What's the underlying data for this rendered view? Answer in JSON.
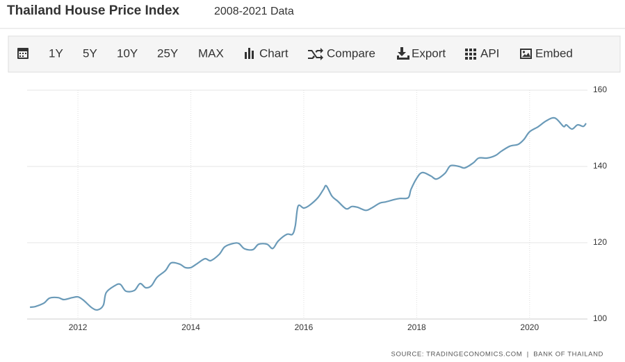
{
  "header": {
    "title": "Thailand House Price Index",
    "subtitle": "2008-2021 Data"
  },
  "toolbar": [
    "1Y",
    "5Y",
    "10Y",
    "25Y",
    "MAX",
    "Chart",
    "Compare",
    "Export",
    "API",
    "Embed"
  ],
  "chart_data": {
    "type": "line",
    "x": [
      2011.15,
      2011.25,
      2011.4,
      2011.5,
      2011.65,
      2011.75,
      2011.9,
      2012.0,
      2012.1,
      2012.25,
      2012.35,
      2012.45,
      2012.5,
      2012.65,
      2012.75,
      2012.85,
      2013.0,
      2013.1,
      2013.2,
      2013.3,
      2013.4,
      2013.55,
      2013.65,
      2013.8,
      2013.9,
      2014.0,
      2014.1,
      2014.25,
      2014.35,
      2014.5,
      2014.6,
      2014.75,
      2014.85,
      2014.95,
      2015.1,
      2015.2,
      2015.35,
      2015.45,
      2015.55,
      2015.7,
      2015.8,
      2015.85,
      2015.9,
      2016.0,
      2016.1,
      2016.25,
      2016.35,
      2016.4,
      2016.5,
      2016.6,
      2016.75,
      2016.85,
      2016.95,
      2017.1,
      2017.2,
      2017.35,
      2017.45,
      2017.6,
      2017.7,
      2017.85,
      2017.9,
      2018.0,
      2018.1,
      2018.25,
      2018.35,
      2018.5,
      2018.6,
      2018.75,
      2018.85,
      2019.0,
      2019.1,
      2019.25,
      2019.4,
      2019.5,
      2019.65,
      2019.8,
      2019.9,
      2020.0,
      2020.15,
      2020.3,
      2020.45,
      2020.6,
      2020.65,
      2020.75,
      2020.85,
      2020.95,
      2021.0
    ],
    "series": [
      {
        "name": "Thailand House Price Index",
        "color": "#6a9ab8",
        "values": [
          103.1,
          103.3,
          104.2,
          105.5,
          105.6,
          105.1,
          105.6,
          105.8,
          104.9,
          102.9,
          102.4,
          103.6,
          106.9,
          108.7,
          109.1,
          107.3,
          107.5,
          109.3,
          108.2,
          108.7,
          110.9,
          112.7,
          114.7,
          114.4,
          113.5,
          113.5,
          114.4,
          115.8,
          115.3,
          116.9,
          118.9,
          119.8,
          119.8,
          118.4,
          118.2,
          119.6,
          119.6,
          118.5,
          120.5,
          122.2,
          122.2,
          124.5,
          129.6,
          129.1,
          129.8,
          131.8,
          134.0,
          134.9,
          132.2,
          130.9,
          128.9,
          129.5,
          129.3,
          128.5,
          129.1,
          130.4,
          130.7,
          131.3,
          131.6,
          131.8,
          134.0,
          136.9,
          138.4,
          137.5,
          136.7,
          138.2,
          140.2,
          140.0,
          139.6,
          140.9,
          142.2,
          142.2,
          142.9,
          144.0,
          145.3,
          145.8,
          147.1,
          149.1,
          150.4,
          152.0,
          152.7,
          150.5,
          150.9,
          149.8,
          150.9,
          150.5,
          151.3
        ]
      }
    ],
    "xlim": [
      2011.1,
      2021.0
    ],
    "xticks": [
      2012,
      2014,
      2016,
      2018,
      2020
    ],
    "ylim": [
      100,
      160
    ],
    "yticks": [
      100,
      120,
      140,
      160
    ],
    "grid": true,
    "source": "SOURCE: TRADINGECONOMICS.COM  |  BANK OF THAILAND"
  }
}
